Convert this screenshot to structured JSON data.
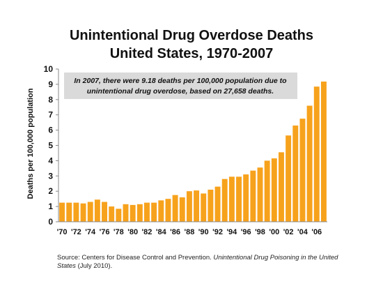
{
  "title_line1": "Unintentional Drug Overdose Deaths",
  "title_line2": "United States, 1970-2007",
  "chart_data": {
    "type": "bar",
    "ylabel": "Deaths per 100,000 population",
    "xlabel": "",
    "ylim": [
      0,
      10
    ],
    "yticks": [
      "0",
      "1",
      "2",
      "3",
      "4",
      "5",
      "6",
      "7",
      "8",
      "9",
      "10"
    ],
    "xtick_labels": [
      "'70",
      "'72",
      "'74",
      "'76",
      "'78",
      "'80",
      "'82",
      "'84",
      "'86",
      "'88",
      "'90",
      "'92",
      "'94",
      "'96",
      "'98",
      "'00",
      "'02",
      "'04",
      "'06"
    ],
    "categories": [
      1970,
      1971,
      1972,
      1973,
      1974,
      1975,
      1976,
      1977,
      1978,
      1979,
      1980,
      1981,
      1982,
      1983,
      1984,
      1985,
      1986,
      1987,
      1988,
      1989,
      1990,
      1991,
      1992,
      1993,
      1994,
      1995,
      1996,
      1997,
      1998,
      1999,
      2000,
      2001,
      2002,
      2003,
      2004,
      2005,
      2006,
      2007
    ],
    "values": [
      1.25,
      1.25,
      1.25,
      1.2,
      1.3,
      1.45,
      1.3,
      1.0,
      0.85,
      1.15,
      1.1,
      1.15,
      1.25,
      1.25,
      1.4,
      1.5,
      1.75,
      1.6,
      2.0,
      2.05,
      1.85,
      2.1,
      2.3,
      2.8,
      2.95,
      2.95,
      3.1,
      3.35,
      3.55,
      4.0,
      4.15,
      4.55,
      5.65,
      6.3,
      6.75,
      7.6,
      8.85,
      9.18
    ],
    "grid": false,
    "bar_color": "#F7A21C"
  },
  "annotation": {
    "line1": "In 2007, there were 9.18 deaths per 100,000 population due to",
    "line2": "unintentional drug overdose, based on 27,658 deaths."
  },
  "source": {
    "prefix": "Source:  Centers for Disease Control and Prevention. ",
    "title": "Unintentional Drug Poisoning in the United States",
    "suffix": " (July 2010)."
  }
}
